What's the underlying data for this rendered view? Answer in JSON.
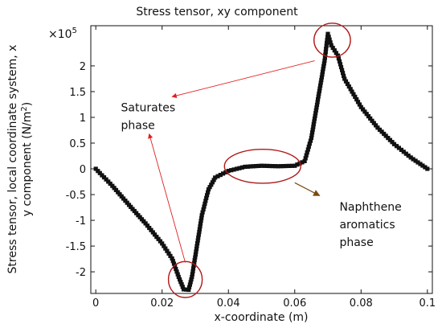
{
  "chart_data": {
    "type": "scatter",
    "title": "Stress tensor, xy component",
    "xlabel": "x-coordinate (m)",
    "ylabel_line1": "Stress tensor, local coordinate system, x",
    "ylabel_line2": "y component (N/m",
    "ylabel_sup": "2",
    "ylabel_tail": ")",
    "multiplier": "×10",
    "multiplier_exp": "5",
    "xlim": [
      -0.0015,
      0.1015
    ],
    "ylim": [
      -2.42,
      2.78
    ],
    "x_ticks": [
      0,
      0.02,
      0.04,
      0.06,
      0.08,
      0.1
    ],
    "x_tick_labels": [
      "0",
      "0.02",
      "0.04",
      "0.06",
      "0.08",
      "0.1"
    ],
    "y_ticks": [
      -2,
      -1.5,
      -1,
      -0.5,
      0,
      0.5,
      1,
      1.5,
      2
    ],
    "y_tick_labels": [
      "-2",
      "-1.5",
      "-1",
      "-0.5",
      "0",
      "0.5",
      "1",
      "1.5",
      "2"
    ],
    "grid": false,
    "series": [
      {
        "marker": "square",
        "color": "#111111",
        "points": [
          [
            0.0,
            0.0
          ],
          [
            0.005,
            -0.33
          ],
          [
            0.01,
            -0.7
          ],
          [
            0.015,
            -1.06
          ],
          [
            0.02,
            -1.45
          ],
          [
            0.023,
            -1.74
          ],
          [
            0.025,
            -2.1
          ],
          [
            0.0265,
            -2.34
          ],
          [
            0.028,
            -2.35
          ],
          [
            0.029,
            -2.1
          ],
          [
            0.0305,
            -1.5
          ],
          [
            0.032,
            -0.9
          ],
          [
            0.034,
            -0.4
          ],
          [
            0.036,
            -0.17
          ],
          [
            0.04,
            -0.04
          ],
          [
            0.045,
            0.04
          ],
          [
            0.05,
            0.06
          ],
          [
            0.055,
            0.05
          ],
          [
            0.06,
            0.06
          ],
          [
            0.063,
            0.15
          ],
          [
            0.065,
            0.6
          ],
          [
            0.067,
            1.35
          ],
          [
            0.069,
            2.1
          ],
          [
            0.07,
            2.62
          ],
          [
            0.071,
            2.4
          ],
          [
            0.073,
            2.2
          ],
          [
            0.075,
            1.75
          ],
          [
            0.08,
            1.2
          ],
          [
            0.085,
            0.8
          ],
          [
            0.09,
            0.48
          ],
          [
            0.095,
            0.22
          ],
          [
            0.1,
            0.0
          ]
        ]
      }
    ],
    "circles": [
      {
        "cx": 0.0713,
        "cy": 2.5,
        "rx": 0.0055,
        "ry": 0.33
      },
      {
        "cx": 0.0503,
        "cy": 0.05,
        "rx": 0.0115,
        "ry": 0.33
      },
      {
        "cx": 0.027,
        "cy": -2.15,
        "rx": 0.0051,
        "ry": 0.35
      }
    ],
    "annotations": [
      {
        "lines": [
          "Saturates",
          "phase"
        ],
        "x": 0.0076,
        "y": 1.12
      },
      {
        "lines": [
          "Naphthene",
          "aromatics",
          "phase"
        ],
        "x": 0.0735,
        "y": -0.81
      }
    ],
    "arrows": [
      {
        "from": [
          0.066,
          2.1
        ],
        "to": [
          0.023,
          1.4
        ]
      },
      {
        "from": [
          0.027,
          -1.82
        ],
        "to": [
          0.0161,
          0.68
        ]
      },
      {
        "from": [
          0.06,
          -0.27
        ],
        "to": [
          0.0675,
          -0.52
        ]
      }
    ],
    "annotation_color": "#e02020",
    "circle_color": "#b01818",
    "arrow_color_dark": "#7a4a12"
  }
}
